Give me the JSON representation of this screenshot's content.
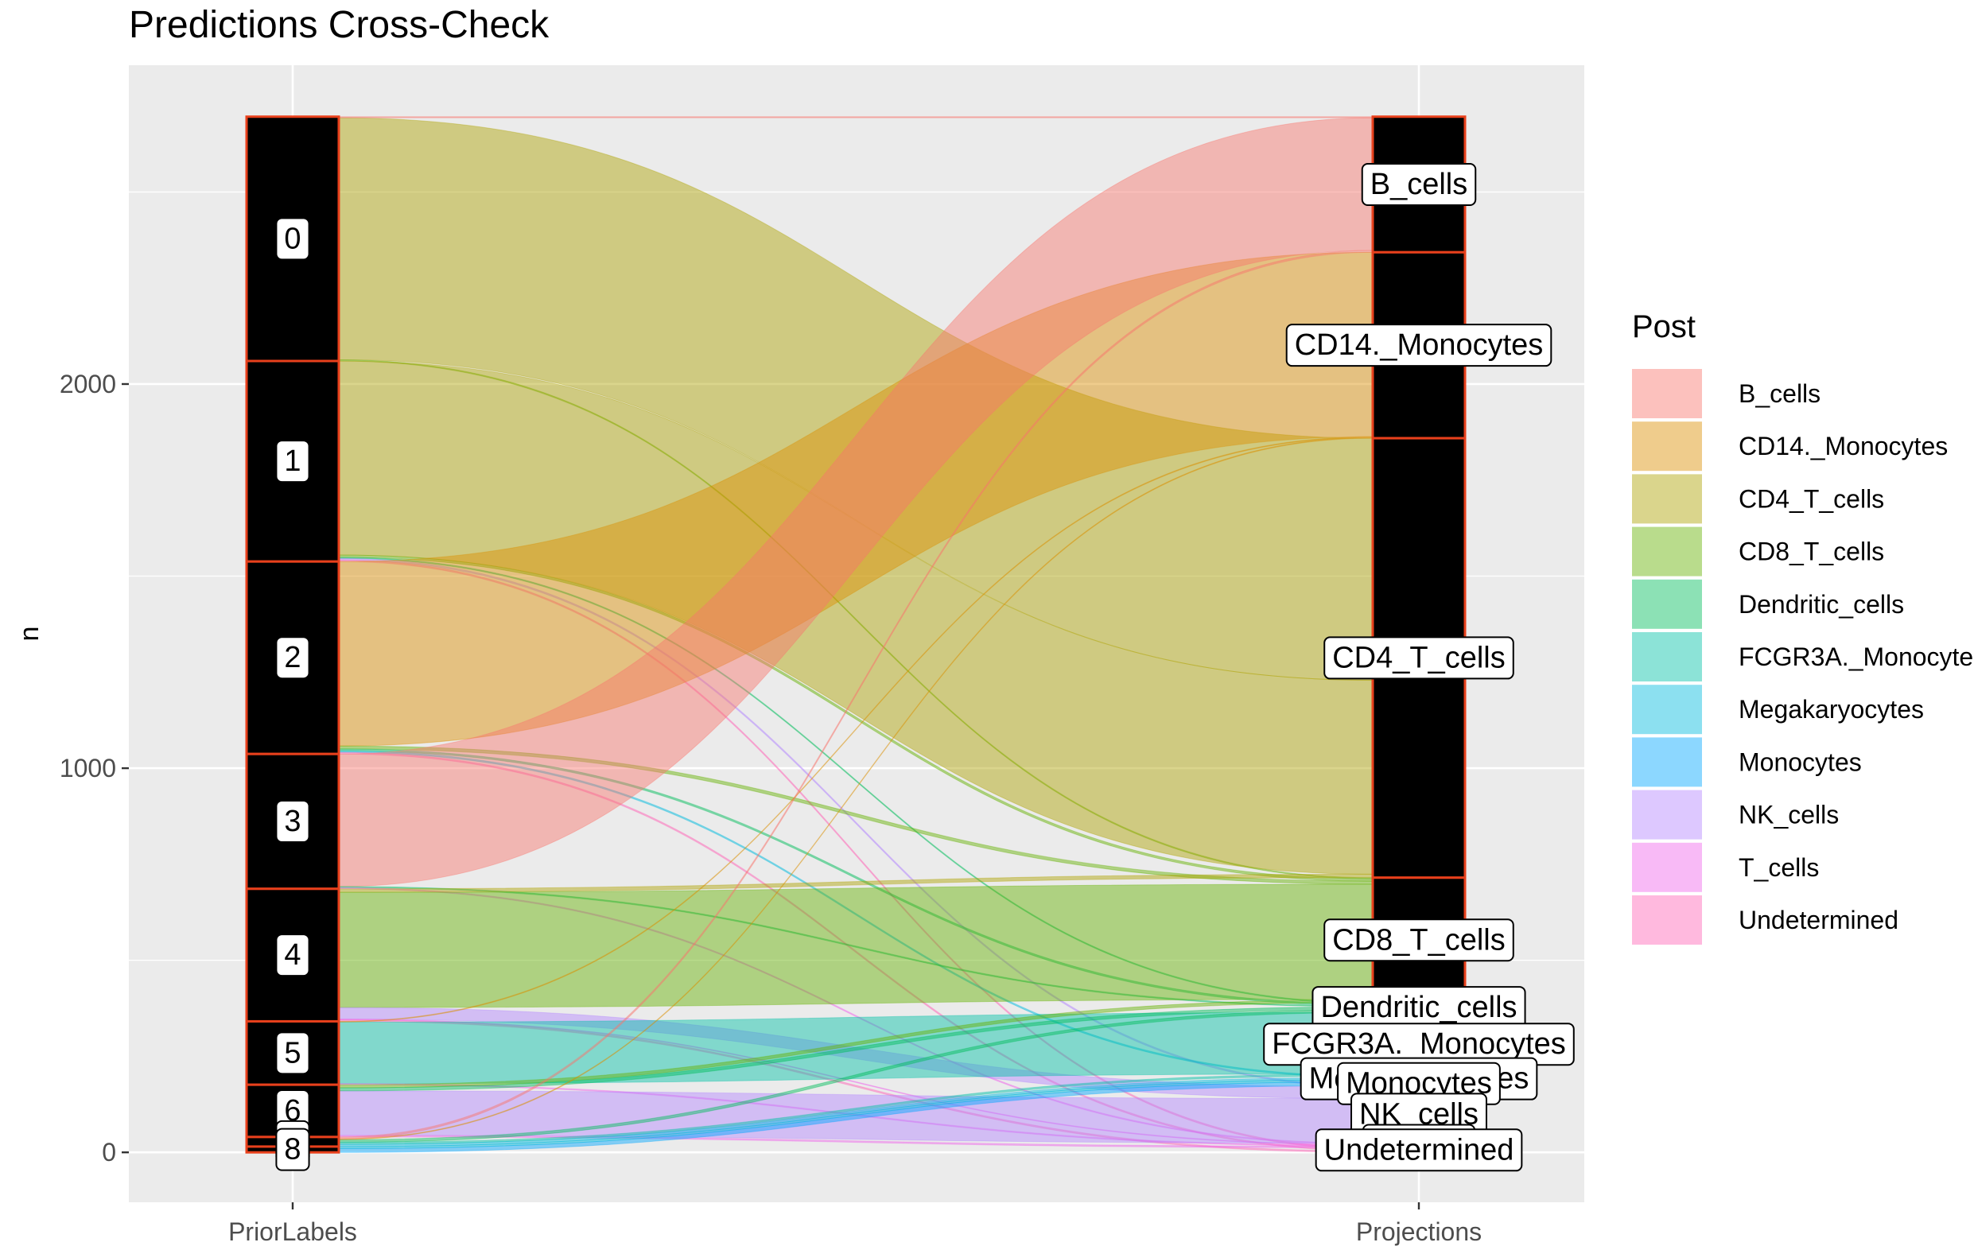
{
  "title": "Predictions Cross-Check",
  "chart_data": {
    "type": "alluvial",
    "title": "Predictions Cross-Check",
    "ylabel": "n",
    "xlabel": "",
    "ylim": [
      -130,
      2830
    ],
    "yticks": [
      0,
      1000,
      2000
    ],
    "axes": [
      "PriorLabels",
      "Projections"
    ],
    "grid": true,
    "legend_position": "right",
    "legend_title": "Post",
    "colors": {
      "B_cells": "#F8766D",
      "CD14._Monocytes": "#DB8E00",
      "CD4_T_cells": "#AEA200",
      "CD8_T_cells": "#64B200",
      "Dendritic_cells": "#00BD5C",
      "FCGR3A._Monocytes": "#00C1A7",
      "Megakaryocytes": "#00BADE",
      "Monocytes": "#00A6FF",
      "NK_cells": "#B385FF",
      "T_cells": "#EF67EB",
      "Undetermined": "#FF63B6"
    },
    "prior_labels": [
      {
        "name": "0",
        "count": 636
      },
      {
        "name": "1",
        "count": 522
      },
      {
        "name": "2",
        "count": 501
      },
      {
        "name": "3",
        "count": 351
      },
      {
        "name": "4",
        "count": 345
      },
      {
        "name": "5",
        "count": 165
      },
      {
        "name": "6",
        "count": 136
      },
      {
        "name": "7",
        "count": 25
      },
      {
        "name": "8",
        "count": 15
      }
    ],
    "projections": [
      {
        "name": "B_cells",
        "count": 353
      },
      {
        "name": "CD14._Monocytes",
        "count": 484
      },
      {
        "name": "CD4_T_cells",
        "count": 1144
      },
      {
        "name": "CD8_T_cells",
        "count": 325
      },
      {
        "name": "Dendritic_cells",
        "count": 26
      },
      {
        "name": "FCGR3A._Monocytes",
        "count": 165
      },
      {
        "name": "Megakaryocytes",
        "count": 15
      },
      {
        "name": "Monocytes",
        "count": 10
      },
      {
        "name": "NK_cells",
        "count": 150
      },
      {
        "name": "T_cells",
        "count": 12
      },
      {
        "name": "Undetermined",
        "count": 12
      }
    ],
    "flows": [
      {
        "from": "0",
        "to": "CD4_T_cells",
        "n": 630
      },
      {
        "from": "0",
        "to": "B_cells",
        "n": 3
      },
      {
        "from": "0",
        "to": "CD8_T_cells",
        "n": 3
      },
      {
        "from": "1",
        "to": "CD4_T_cells",
        "n": 505
      },
      {
        "from": "1",
        "to": "CD8_T_cells",
        "n": 6
      },
      {
        "from": "1",
        "to": "Dendritic_cells",
        "n": 3
      },
      {
        "from": "1",
        "to": "NK_cells",
        "n": 4
      },
      {
        "from": "1",
        "to": "Undetermined",
        "n": 4
      },
      {
        "from": "2",
        "to": "CD14._Monocytes",
        "n": 480
      },
      {
        "from": "2",
        "to": "CD8_T_cells",
        "n": 8
      },
      {
        "from": "2",
        "to": "Dendritic_cells",
        "n": 5
      },
      {
        "from": "2",
        "to": "Megakaryocytes",
        "n": 4
      },
      {
        "from": "2",
        "to": "Undetermined",
        "n": 4
      },
      {
        "from": "3",
        "to": "B_cells",
        "n": 345
      },
      {
        "from": "3",
        "to": "Dendritic_cells",
        "n": 3
      },
      {
        "from": "3",
        "to": "T_cells",
        "n": 3
      },
      {
        "from": "4",
        "to": "CD4_T_cells",
        "n": 9
      },
      {
        "from": "4",
        "to": "CD8_T_cells",
        "n": 300
      },
      {
        "from": "4",
        "to": "NK_cells",
        "n": 30
      },
      {
        "from": "4",
        "to": "Undetermined",
        "n": 4
      },
      {
        "from": "4",
        "to": "T_cells",
        "n": 2
      },
      {
        "from": "5",
        "to": "FCGR3A._Monocytes",
        "n": 160
      },
      {
        "from": "5",
        "to": "CD14._Monocytes",
        "n": 2
      },
      {
        "from": "5",
        "to": "T_cells",
        "n": 3
      },
      {
        "from": "6",
        "to": "NK_cells",
        "n": 116
      },
      {
        "from": "6",
        "to": "CD8_T_cells",
        "n": 8
      },
      {
        "from": "6",
        "to": "Dendritic_cells",
        "n": 8
      },
      {
        "from": "6",
        "to": "T_cells",
        "n": 4
      },
      {
        "from": "7",
        "to": "Dendritic_cells",
        "n": 7
      },
      {
        "from": "7",
        "to": "CD14._Monocytes",
        "n": 2
      },
      {
        "from": "7",
        "to": "B_cells",
        "n": 5
      },
      {
        "from": "7",
        "to": "FCGR3A._Monocytes",
        "n": 5
      },
      {
        "from": "7",
        "to": "Megakaryocytes",
        "n": 6
      },
      {
        "from": "8",
        "to": "Monocytes",
        "n": 10
      },
      {
        "from": "8",
        "to": "Megakaryocytes",
        "n": 5
      }
    ]
  }
}
